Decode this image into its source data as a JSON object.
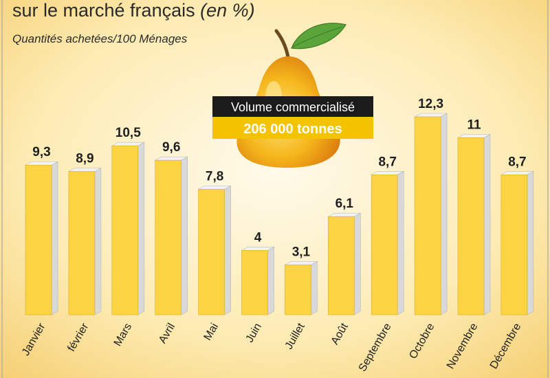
{
  "header": {
    "title_main": "sur le marché français ",
    "title_unit": "(en %)",
    "subtitle": "Quantités achetées/100 Ménages"
  },
  "callout": {
    "title": "Volume commercialisé",
    "value": "206 000 tonnes"
  },
  "colors": {
    "bar_face": "#fcd443",
    "bar_side": "#d9d9d9",
    "callout_dark": "#1b1b1b",
    "callout_accent": "#f4c300",
    "pear_body": "#f2b01e",
    "leaf": "#5aa43a"
  },
  "chart_data": {
    "type": "bar",
    "title": "sur le marché français (en %)",
    "subtitle": "Quantités achetées/100 Ménages",
    "categories": [
      "Janvier",
      "février",
      "Mars",
      "Avril",
      "Mai",
      "Juin",
      "Juillet",
      "Août",
      "Septembre",
      "Octobre",
      "Novembre",
      "Décembre"
    ],
    "values": [
      9.3,
      8.9,
      10.5,
      9.6,
      7.8,
      4,
      3.1,
      6.1,
      8.7,
      12.3,
      11,
      8.7
    ],
    "value_labels": [
      "9,3",
      "8,9",
      "10,5",
      "9,6",
      "7,8",
      "4",
      "3,1",
      "6,1",
      "8,7",
      "12,3",
      "11",
      "8,7"
    ],
    "xlabel": "",
    "ylabel": "",
    "ylim": [
      0,
      12.3
    ],
    "grid": false,
    "legend": "none"
  }
}
